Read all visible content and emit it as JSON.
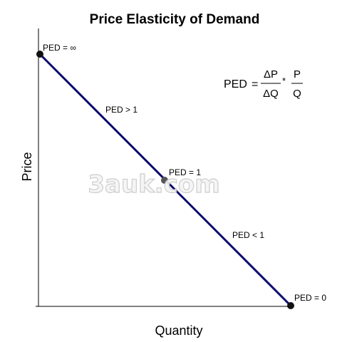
{
  "title": "Price Elasticity of Demand",
  "axes": {
    "x_label": "Quantity",
    "y_label": "Price"
  },
  "formula": {
    "lhs": "PED",
    "equals": "=",
    "frac1_num": "ΔP",
    "frac1_den": "ΔQ",
    "operator": "*",
    "frac2_num": "P",
    "frac2_den": "Q"
  },
  "annotations": {
    "top_point": "PED = ∞",
    "upper_segment": "PED > 1",
    "mid_point": "PED = 1",
    "lower_segment": "PED < 1",
    "bottom_point": "PED = 0"
  },
  "watermark": "3auk.com",
  "colors": {
    "demand_line": "#0b0b6e",
    "point_fill": "#111111",
    "mid_point_fill": "#555555",
    "axis": "#000000",
    "watermark_fill": "#f4f4f4",
    "watermark_stroke": "#c8c8c8"
  }
}
